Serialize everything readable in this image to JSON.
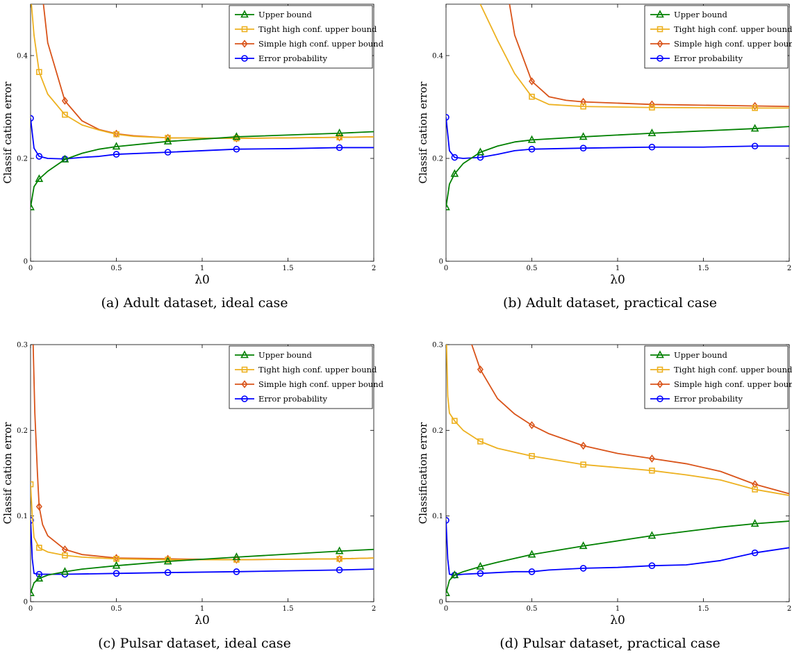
{
  "colors": {
    "upper": "#008000",
    "tight": "#EDB120",
    "simple": "#D95319",
    "error": "#0000FF"
  },
  "chart_data": [
    {
      "type": "line",
      "caption": "(a)  Adult dataset, ideal case",
      "xlabel": "λ0",
      "ylabel": "Classif cation error",
      "xlim": [
        0,
        2
      ],
      "ylim": [
        0,
        0.5
      ],
      "xticks": [
        0,
        0.5,
        1,
        1.5,
        2
      ],
      "xtick_labels": [
        "0",
        "0.5",
        "1",
        "1.5",
        "2"
      ],
      "yticks": [
        0,
        0.2,
        0.4
      ],
      "ytick_labels": [
        "0",
        "0.2",
        "0.4"
      ],
      "legend_position": "top-right",
      "series": [
        {
          "name": "Upper bound",
          "key": "upper",
          "marker": "triangle",
          "x": [
            0,
            0.02,
            0.05,
            0.1,
            0.2,
            0.3,
            0.4,
            0.5,
            0.8,
            1.2,
            1.8,
            2
          ],
          "y": [
            0.105,
            0.145,
            0.16,
            0.175,
            0.198,
            0.21,
            0.218,
            0.223,
            0.233,
            0.242,
            0.249,
            0.252
          ],
          "markers": [
            0,
            0.05,
            0.2,
            0.5,
            0.8,
            1.2,
            1.8
          ]
        },
        {
          "name": "Tight high conf. upper bound",
          "key": "tight",
          "marker": "square",
          "x": [
            0.005,
            0.02,
            0.05,
            0.1,
            0.2,
            0.3,
            0.4,
            0.5,
            0.6,
            0.8,
            1.2,
            1.8,
            2
          ],
          "y": [
            0.5,
            0.44,
            0.368,
            0.325,
            0.285,
            0.265,
            0.255,
            0.247,
            0.243,
            0.24,
            0.239,
            0.241,
            0.242
          ],
          "markers": [
            0.05,
            0.2,
            0.5,
            0.8,
            1.2,
            1.8
          ]
        },
        {
          "name": "Simple high conf. upper bound",
          "key": "simple",
          "marker": "diamond",
          "x": [
            0.075,
            0.1,
            0.2,
            0.3,
            0.4,
            0.5,
            0.6,
            0.8,
            1.2,
            1.8,
            2
          ],
          "y": [
            0.5,
            0.425,
            0.312,
            0.273,
            0.256,
            0.248,
            0.244,
            0.24,
            0.239,
            0.241,
            0.242
          ],
          "markers": [
            0.2,
            0.5,
            0.8,
            1.2,
            1.8
          ]
        },
        {
          "name": "Error probability",
          "key": "error",
          "marker": "circle",
          "x": [
            0,
            0.02,
            0.05,
            0.1,
            0.2,
            0.3,
            0.4,
            0.5,
            0.8,
            1.2,
            1.5,
            1.8,
            2
          ],
          "y": [
            0.278,
            0.22,
            0.204,
            0.2,
            0.199,
            0.202,
            0.204,
            0.208,
            0.212,
            0.218,
            0.219,
            0.221,
            0.221
          ],
          "markers": [
            0,
            0.05,
            0.2,
            0.5,
            0.8,
            1.2,
            1.8
          ]
        }
      ]
    },
    {
      "type": "line",
      "caption": "(b)  Adult dataset, practical case",
      "xlabel": "λ0",
      "ylabel": "Classif cation error",
      "xlim": [
        0,
        2
      ],
      "ylim": [
        0,
        0.5
      ],
      "xticks": [
        0,
        0.5,
        1,
        1.5,
        2
      ],
      "xtick_labels": [
        "0",
        "0.5",
        "1",
        "1.5",
        "2"
      ],
      "yticks": [
        0,
        0.2,
        0.4
      ],
      "ytick_labels": [
        "0",
        "0.2",
        "0.4"
      ],
      "legend_position": "top-right",
      "series": [
        {
          "name": "Upper bound",
          "key": "upper",
          "marker": "triangle",
          "x": [
            0,
            0.02,
            0.05,
            0.1,
            0.2,
            0.3,
            0.4,
            0.5,
            0.8,
            1.2,
            1.8,
            2
          ],
          "y": [
            0.105,
            0.15,
            0.17,
            0.19,
            0.212,
            0.224,
            0.232,
            0.236,
            0.242,
            0.249,
            0.258,
            0.262
          ],
          "markers": [
            0,
            0.05,
            0.2,
            0.5,
            0.8,
            1.2,
            1.8
          ]
        },
        {
          "name": "Tight high conf. upper bound",
          "key": "tight",
          "marker": "square",
          "x": [
            0.2,
            0.3,
            0.4,
            0.5,
            0.6,
            0.8,
            1.2,
            1.8,
            2
          ],
          "y": [
            0.5,
            0.43,
            0.365,
            0.32,
            0.305,
            0.301,
            0.299,
            0.298,
            0.298
          ],
          "markers": [
            0.5,
            0.8,
            1.2,
            1.8
          ]
        },
        {
          "name": "Simple high conf. upper bound",
          "key": "simple",
          "marker": "diamond",
          "x": [
            0.37,
            0.4,
            0.5,
            0.6,
            0.7,
            0.8,
            1.2,
            1.8,
            2
          ],
          "y": [
            0.5,
            0.44,
            0.35,
            0.32,
            0.313,
            0.31,
            0.305,
            0.302,
            0.301
          ],
          "markers": [
            0.5,
            0.8,
            1.2,
            1.8
          ]
        },
        {
          "name": "Error probability",
          "key": "error",
          "marker": "circle",
          "x": [
            0,
            0.02,
            0.05,
            0.1,
            0.2,
            0.3,
            0.4,
            0.5,
            0.8,
            1.2,
            1.5,
            1.8,
            2
          ],
          "y": [
            0.28,
            0.215,
            0.202,
            0.2,
            0.202,
            0.208,
            0.215,
            0.218,
            0.22,
            0.222,
            0.222,
            0.224,
            0.224
          ],
          "markers": [
            0,
            0.05,
            0.2,
            0.5,
            0.8,
            1.2,
            1.8
          ]
        }
      ]
    },
    {
      "type": "line",
      "caption": "(c)  Pulsar dataset, ideal case",
      "xlabel": "λ0",
      "ylabel": "Classif cation error",
      "xlim": [
        0,
        2
      ],
      "ylim": [
        0,
        0.3
      ],
      "xticks": [
        0,
        0.5,
        1,
        1.5,
        2
      ],
      "xtick_labels": [
        "0",
        "0.5",
        "1",
        "1.5",
        "2"
      ],
      "yticks": [
        0,
        0.1,
        0.2,
        0.3
      ],
      "ytick_labels": [
        "0",
        "0.1",
        "0.2",
        "0.3"
      ],
      "legend_position": "top-right",
      "series": [
        {
          "name": "Upper bound",
          "key": "upper",
          "marker": "triangle",
          "x": [
            0,
            0.02,
            0.05,
            0.1,
            0.2,
            0.3,
            0.5,
            0.8,
            1.2,
            1.8,
            2
          ],
          "y": [
            0.01,
            0.022,
            0.027,
            0.031,
            0.035,
            0.038,
            0.042,
            0.047,
            0.052,
            0.059,
            0.061
          ],
          "markers": [
            0,
            0.05,
            0.2,
            0.5,
            0.8,
            1.2,
            1.8
          ]
        },
        {
          "name": "Tight high conf. upper bound",
          "key": "tight",
          "marker": "square",
          "x": [
            0,
            0.01,
            0.02,
            0.05,
            0.1,
            0.2,
            0.3,
            0.5,
            0.8,
            1.2,
            1.8,
            2
          ],
          "y": [
            0.137,
            0.1,
            0.075,
            0.063,
            0.058,
            0.054,
            0.052,
            0.05,
            0.049,
            0.049,
            0.05,
            0.051
          ],
          "markers": [
            0,
            0.05,
            0.2,
            0.5,
            0.8,
            1.2,
            1.8
          ]
        },
        {
          "name": "Simple high conf. upper bound",
          "key": "simple",
          "marker": "diamond",
          "x": [
            0.015,
            0.025,
            0.04,
            0.05,
            0.07,
            0.1,
            0.2,
            0.3,
            0.5,
            0.8,
            1.2,
            1.8,
            2
          ],
          "y": [
            0.3,
            0.22,
            0.15,
            0.111,
            0.09,
            0.077,
            0.061,
            0.055,
            0.051,
            0.05,
            0.049,
            0.05,
            0.051
          ],
          "markers": [
            0.05,
            0.2,
            0.5,
            0.8,
            1.2,
            1.8
          ]
        },
        {
          "name": "Error probability",
          "key": "error",
          "marker": "circle",
          "x": [
            0,
            0.01,
            0.02,
            0.05,
            0.1,
            0.2,
            0.5,
            0.8,
            1.2,
            1.8,
            2
          ],
          "y": [
            0.095,
            0.05,
            0.033,
            0.032,
            0.032,
            0.032,
            0.033,
            0.034,
            0.035,
            0.037,
            0.038
          ],
          "markers": [
            0,
            0.05,
            0.2,
            0.5,
            0.8,
            1.2,
            1.8
          ]
        }
      ]
    },
    {
      "type": "line",
      "caption": "(d)  Pulsar dataset, practical case",
      "xlabel": "λ0",
      "ylabel": "Classification error",
      "xlim": [
        0,
        2
      ],
      "ylim": [
        0,
        0.3
      ],
      "xticks": [
        0,
        0.5,
        1,
        1.5,
        2
      ],
      "xtick_labels": [
        "0",
        "0.5",
        "1",
        "1.5",
        "2"
      ],
      "yticks": [
        0,
        0.1,
        0.2,
        0.3
      ],
      "ytick_labels": [
        "0",
        "0.1",
        "0.2",
        "0.3"
      ],
      "legend_position": "top-right",
      "series": [
        {
          "name": "Upper bound",
          "key": "upper",
          "marker": "triangle",
          "x": [
            0,
            0.02,
            0.05,
            0.1,
            0.2,
            0.3,
            0.5,
            0.8,
            1.2,
            1.6,
            1.8,
            2
          ],
          "y": [
            0.01,
            0.025,
            0.031,
            0.035,
            0.041,
            0.046,
            0.055,
            0.065,
            0.077,
            0.087,
            0.091,
            0.094
          ],
          "markers": [
            0,
            0.05,
            0.2,
            0.5,
            0.8,
            1.2,
            1.8
          ]
        },
        {
          "name": "Tight high conf. upper bound",
          "key": "tight",
          "marker": "square",
          "x": [
            0.003,
            0.01,
            0.02,
            0.05,
            0.1,
            0.2,
            0.3,
            0.5,
            0.8,
            1.2,
            1.4,
            1.6,
            1.8,
            2
          ],
          "y": [
            0.3,
            0.24,
            0.22,
            0.211,
            0.2,
            0.187,
            0.179,
            0.17,
            0.16,
            0.153,
            0.148,
            0.142,
            0.131,
            0.124
          ],
          "markers": [
            0.05,
            0.2,
            0.5,
            0.8,
            1.2,
            1.8
          ]
        },
        {
          "name": "Simple high conf. upper bound",
          "key": "simple",
          "marker": "diamond",
          "x": [
            0.15,
            0.2,
            0.3,
            0.4,
            0.5,
            0.6,
            0.8,
            1.0,
            1.2,
            1.4,
            1.6,
            1.8,
            2
          ],
          "y": [
            0.3,
            0.271,
            0.237,
            0.219,
            0.206,
            0.196,
            0.182,
            0.173,
            0.167,
            0.161,
            0.152,
            0.137,
            0.126
          ],
          "markers": [
            0.2,
            0.5,
            0.8,
            1.2,
            1.8
          ]
        },
        {
          "name": "Error probability",
          "key": "error",
          "marker": "circle",
          "x": [
            0,
            0.01,
            0.02,
            0.05,
            0.1,
            0.2,
            0.3,
            0.4,
            0.5,
            0.6,
            0.8,
            1.0,
            1.2,
            1.4,
            1.6,
            1.8,
            2
          ],
          "y": [
            0.095,
            0.05,
            0.032,
            0.031,
            0.032,
            0.033,
            0.034,
            0.035,
            0.035,
            0.037,
            0.039,
            0.04,
            0.042,
            0.043,
            0.048,
            0.057,
            0.063
          ],
          "markers": [
            0,
            0.05,
            0.2,
            0.5,
            0.8,
            1.2,
            1.8
          ]
        }
      ]
    }
  ]
}
